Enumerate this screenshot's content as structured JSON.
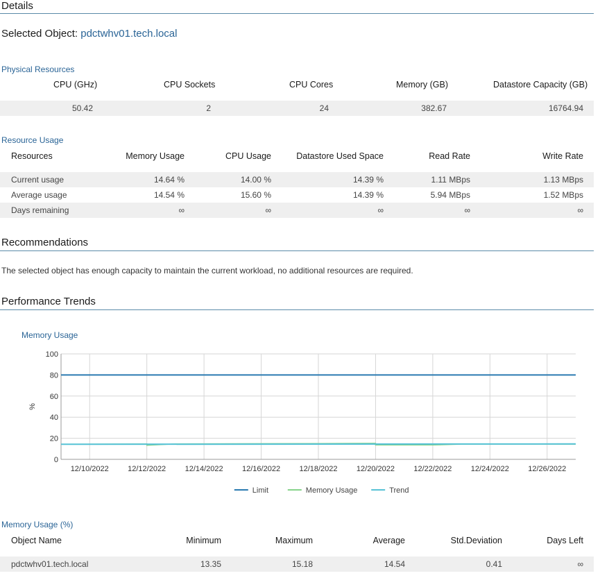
{
  "details": {
    "title": "Details"
  },
  "selected": {
    "label": "Selected Object:",
    "object": "pdctwhv01.tech.local"
  },
  "physical": {
    "title": "Physical Resources",
    "headers": [
      "CPU (GHz)",
      "CPU Sockets",
      "CPU Cores",
      "Memory (GB)",
      "Datastore Capacity (GB)"
    ],
    "values": [
      "50.42",
      "2",
      "24",
      "382.67",
      "16764.94"
    ]
  },
  "usage": {
    "title": "Resource Usage",
    "headers": [
      "Resources",
      "Memory Usage",
      "CPU Usage",
      "Datastore Used Space",
      "Read Rate",
      "Write Rate"
    ],
    "rows": [
      [
        "Current usage",
        "14.64 %",
        "14.00 %",
        "14.39 %",
        "1.11 MBps",
        "1.13 MBps"
      ],
      [
        "Average usage",
        "14.54 %",
        "15.60 %",
        "14.39 %",
        "5.94 MBps",
        "1.52 MBps"
      ],
      [
        "Days remaining",
        "∞",
        "∞",
        "∞",
        "∞",
        "∞"
      ]
    ]
  },
  "recommendations": {
    "title": "Recommendations",
    "text": "The selected object has enough capacity to maintain the current workload, no additional resources are required."
  },
  "trends": {
    "title": "Performance Trends"
  },
  "chart_data": {
    "type": "line",
    "title": "Memory Usage",
    "ylabel": "%",
    "xlabel": "",
    "ylim": [
      0,
      100
    ],
    "yticks": [
      0,
      20,
      40,
      60,
      80,
      100
    ],
    "xlim": [
      "12/09/2022",
      "12/27/2022"
    ],
    "xticks": [
      "12/10/2022",
      "12/12/2022",
      "12/14/2022",
      "12/16/2022",
      "12/18/2022",
      "12/20/2022",
      "12/22/2022",
      "12/24/2022",
      "12/26/2022"
    ],
    "grid": true,
    "legend_position": "bottom-center",
    "series": [
      {
        "name": "Limit",
        "color": "#2a7ab0",
        "points": [
          [
            "12/09/2022",
            80
          ],
          [
            "12/27/2022",
            80
          ]
        ]
      },
      {
        "name": "Memory Usage",
        "color": "#86d38a",
        "points": [
          [
            "12/09/2022",
            14.3
          ],
          [
            "12/12/2022",
            14.6
          ],
          [
            "12/12/2022",
            13.35
          ],
          [
            "12/13/2022",
            14.6
          ],
          [
            "12/15/2022",
            14.8
          ],
          [
            "12/18/2022",
            15.0
          ],
          [
            "12/20/2022",
            15.18
          ],
          [
            "12/20/2022",
            13.6
          ],
          [
            "12/22/2022",
            13.6
          ],
          [
            "12/23/2022",
            14.4
          ],
          [
            "12/25/2022",
            14.5
          ],
          [
            "12/27/2022",
            14.4
          ]
        ]
      },
      {
        "name": "Trend",
        "color": "#56c2d6",
        "points": [
          [
            "12/09/2022",
            14.3
          ],
          [
            "12/27/2022",
            14.6
          ]
        ]
      }
    ]
  },
  "memtable": {
    "title": "Memory Usage (%)",
    "headers": [
      "Object Name",
      "Minimum",
      "Maximum",
      "Average",
      "Std.Deviation",
      "Days Left"
    ],
    "rows": [
      [
        "pdctwhv01.tech.local",
        "13.35",
        "15.18",
        "14.54",
        "0.41",
        "∞"
      ]
    ]
  }
}
